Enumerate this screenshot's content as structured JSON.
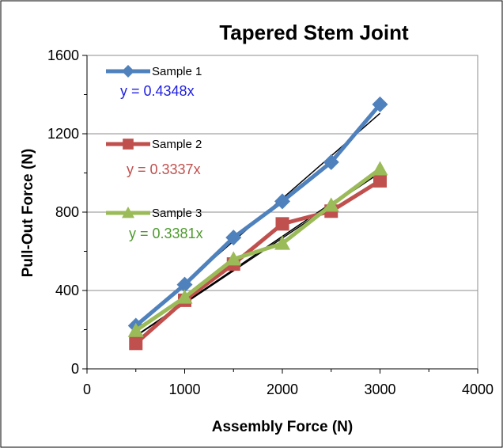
{
  "chart_data": {
    "type": "line",
    "title": "Tapered Stem Joint",
    "xlabel": "Assembly Force (N)",
    "ylabel": "Pull-Out Force (N)",
    "xlim": [
      0,
      4000
    ],
    "ylim": [
      0,
      1600
    ],
    "x_ticks": [
      "0",
      "1000",
      "2000",
      "3000",
      "4000"
    ],
    "y_ticks": [
      "0",
      "400",
      "800",
      "1200",
      "1600"
    ],
    "grid": "horizontal major",
    "legend": "left, stacked, with trendline equations",
    "series": [
      {
        "name": "Sample 1",
        "color": "#4F81BD",
        "marker": "diamond",
        "x": [
          500,
          1000,
          1500,
          2000,
          2500,
          3000
        ],
        "values": [
          220,
          430,
          670,
          855,
          1055,
          1350
        ],
        "trend_slope": 0.4348,
        "equation": "y = 0.4348x",
        "equation_color": "#1F1FE0"
      },
      {
        "name": "Sample 2",
        "color": "#C0504D",
        "marker": "square",
        "x": [
          500,
          1000,
          1500,
          2000,
          2500,
          3000
        ],
        "values": [
          130,
          350,
          535,
          740,
          805,
          960
        ],
        "trend_slope": 0.3337,
        "equation": "y = 0.3337x",
        "equation_color": "#C0504D"
      },
      {
        "name": "Sample 3",
        "color": "#9BBB59",
        "marker": "triangle",
        "x": [
          500,
          1000,
          1500,
          2000,
          2500,
          3000
        ],
        "values": [
          195,
          365,
          560,
          640,
          835,
          1020
        ],
        "trend_slope": 0.3381,
        "equation": "y = 0.3381x",
        "equation_color": "#4E9A2E"
      }
    ]
  }
}
